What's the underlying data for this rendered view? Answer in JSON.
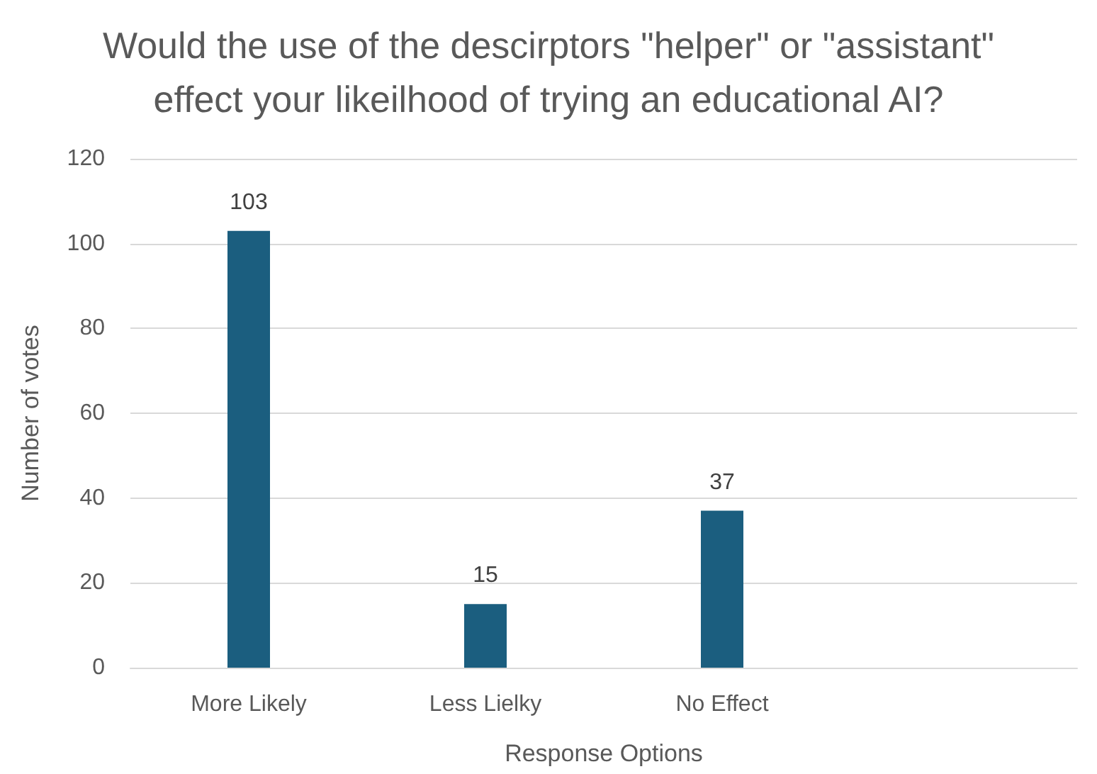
{
  "chart_data": {
    "type": "bar",
    "title": "Would the use of the descirptors \"helper\" or \"assistant\"\neffect your likeilhood of trying an educational AI?",
    "xlabel": "Response Options",
    "ylabel": "Number of votes",
    "categories": [
      "More Likely",
      "Less Lielky",
      "No Effect",
      null
    ],
    "values": [
      103,
      15,
      37,
      null
    ],
    "color": "#1b5e7f",
    "ylim": [
      0,
      120
    ],
    "yticks": [
      0,
      20,
      40,
      60,
      80,
      100,
      120
    ],
    "grid": "y",
    "data_labels": true
  }
}
